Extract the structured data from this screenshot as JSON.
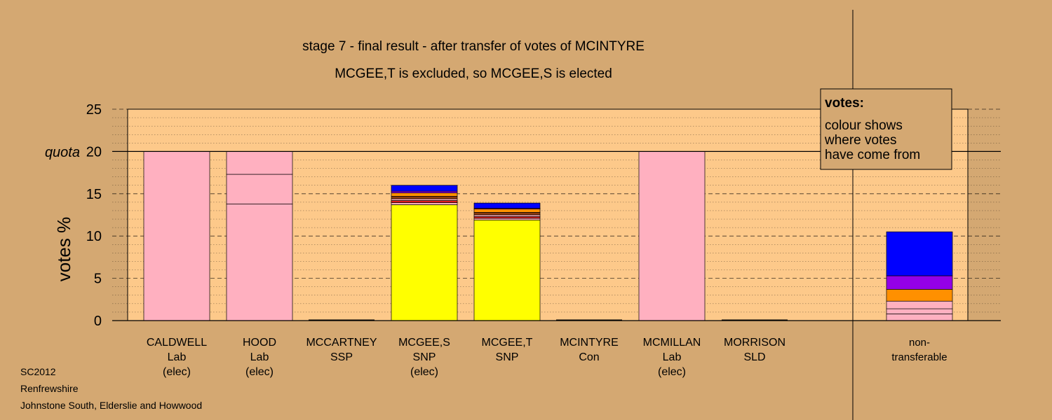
{
  "colors": {
    "background": "#d4a872",
    "plot_area": "#fdc98a",
    "pink": "#ffb0c0",
    "yellow": "#ffff00",
    "blue": "#0000ff",
    "purple": "#9400e8",
    "orange": "#ff9000",
    "brown": "#8b3a10",
    "red": "#e02020"
  },
  "chart_data": {
    "type": "bar",
    "stacked": true,
    "title": "stage 7 - final result - after transfer of votes of MCINTYRE",
    "subtitle": "MCGEE,T is excluded, so MCGEE,S is elected",
    "ylabel": "votes %",
    "ylim": [
      0,
      25
    ],
    "yticks": [
      "0",
      "5",
      "10",
      "15",
      "20",
      "25"
    ],
    "quota": {
      "label": "quota",
      "value": 20
    },
    "grid": true,
    "legend": {
      "title": "votes:",
      "lines": [
        "colour shows",
        "where votes",
        "have come from"
      ]
    },
    "categories": [
      {
        "lines": [
          "CALDWELL",
          "Lab",
          "(elec)"
        ]
      },
      {
        "lines": [
          "HOOD",
          "Lab",
          "(elec)"
        ]
      },
      {
        "lines": [
          "MCCARTNEY",
          "SSP"
        ]
      },
      {
        "lines": [
          "MCGEE,S",
          "SNP",
          "(elec)"
        ]
      },
      {
        "lines": [
          "MCGEE,T",
          "SNP"
        ]
      },
      {
        "lines": [
          "MCINTYRE",
          "Con"
        ]
      },
      {
        "lines": [
          "MCMILLAN",
          "Lab",
          "(elec)"
        ]
      },
      {
        "lines": [
          "MORRISON",
          "SLD"
        ]
      },
      {
        "lines": [
          "non-",
          "transferable"
        ]
      }
    ],
    "bars": [
      {
        "segments": [
          {
            "value": 20.0,
            "color": "pink"
          }
        ]
      },
      {
        "segments": [
          {
            "value": 13.8,
            "color": "pink"
          },
          {
            "value": 3.5,
            "color": "pink"
          },
          {
            "value": 2.7,
            "color": "pink"
          }
        ]
      },
      {
        "segments": []
      },
      {
        "segments": [
          {
            "value": 13.7,
            "color": "yellow"
          },
          {
            "value": 0.25,
            "color": "pink"
          },
          {
            "value": 0.25,
            "color": "red"
          },
          {
            "value": 0.2,
            "color": "pink"
          },
          {
            "value": 0.3,
            "color": "brown"
          },
          {
            "value": 0.4,
            "color": "orange"
          },
          {
            "value": 0.2,
            "color": "purple"
          },
          {
            "value": 0.7,
            "color": "blue"
          }
        ]
      },
      {
        "segments": [
          {
            "value": 11.9,
            "color": "yellow"
          },
          {
            "value": 0.2,
            "color": "pink"
          },
          {
            "value": 0.2,
            "color": "red"
          },
          {
            "value": 0.2,
            "color": "pink"
          },
          {
            "value": 0.3,
            "color": "brown"
          },
          {
            "value": 0.4,
            "color": "orange"
          },
          {
            "value": 0.1,
            "color": "purple"
          },
          {
            "value": 0.6,
            "color": "blue"
          }
        ]
      },
      {
        "segments": []
      },
      {
        "segments": [
          {
            "value": 20.0,
            "color": "pink"
          }
        ]
      },
      {
        "segments": []
      },
      {
        "segments": [
          {
            "value": 0.8,
            "color": "pink"
          },
          {
            "value": 0.6,
            "color": "pink"
          },
          {
            "value": 0.9,
            "color": "pink"
          },
          {
            "value": 1.4,
            "color": "orange"
          },
          {
            "value": 1.6,
            "color": "purple"
          },
          {
            "value": 5.2,
            "color": "blue"
          }
        ]
      }
    ]
  },
  "footer": {
    "lines": [
      "SC2012",
      "Renfrewshire",
      "Johnstone South, Elderslie and Howwood"
    ]
  }
}
